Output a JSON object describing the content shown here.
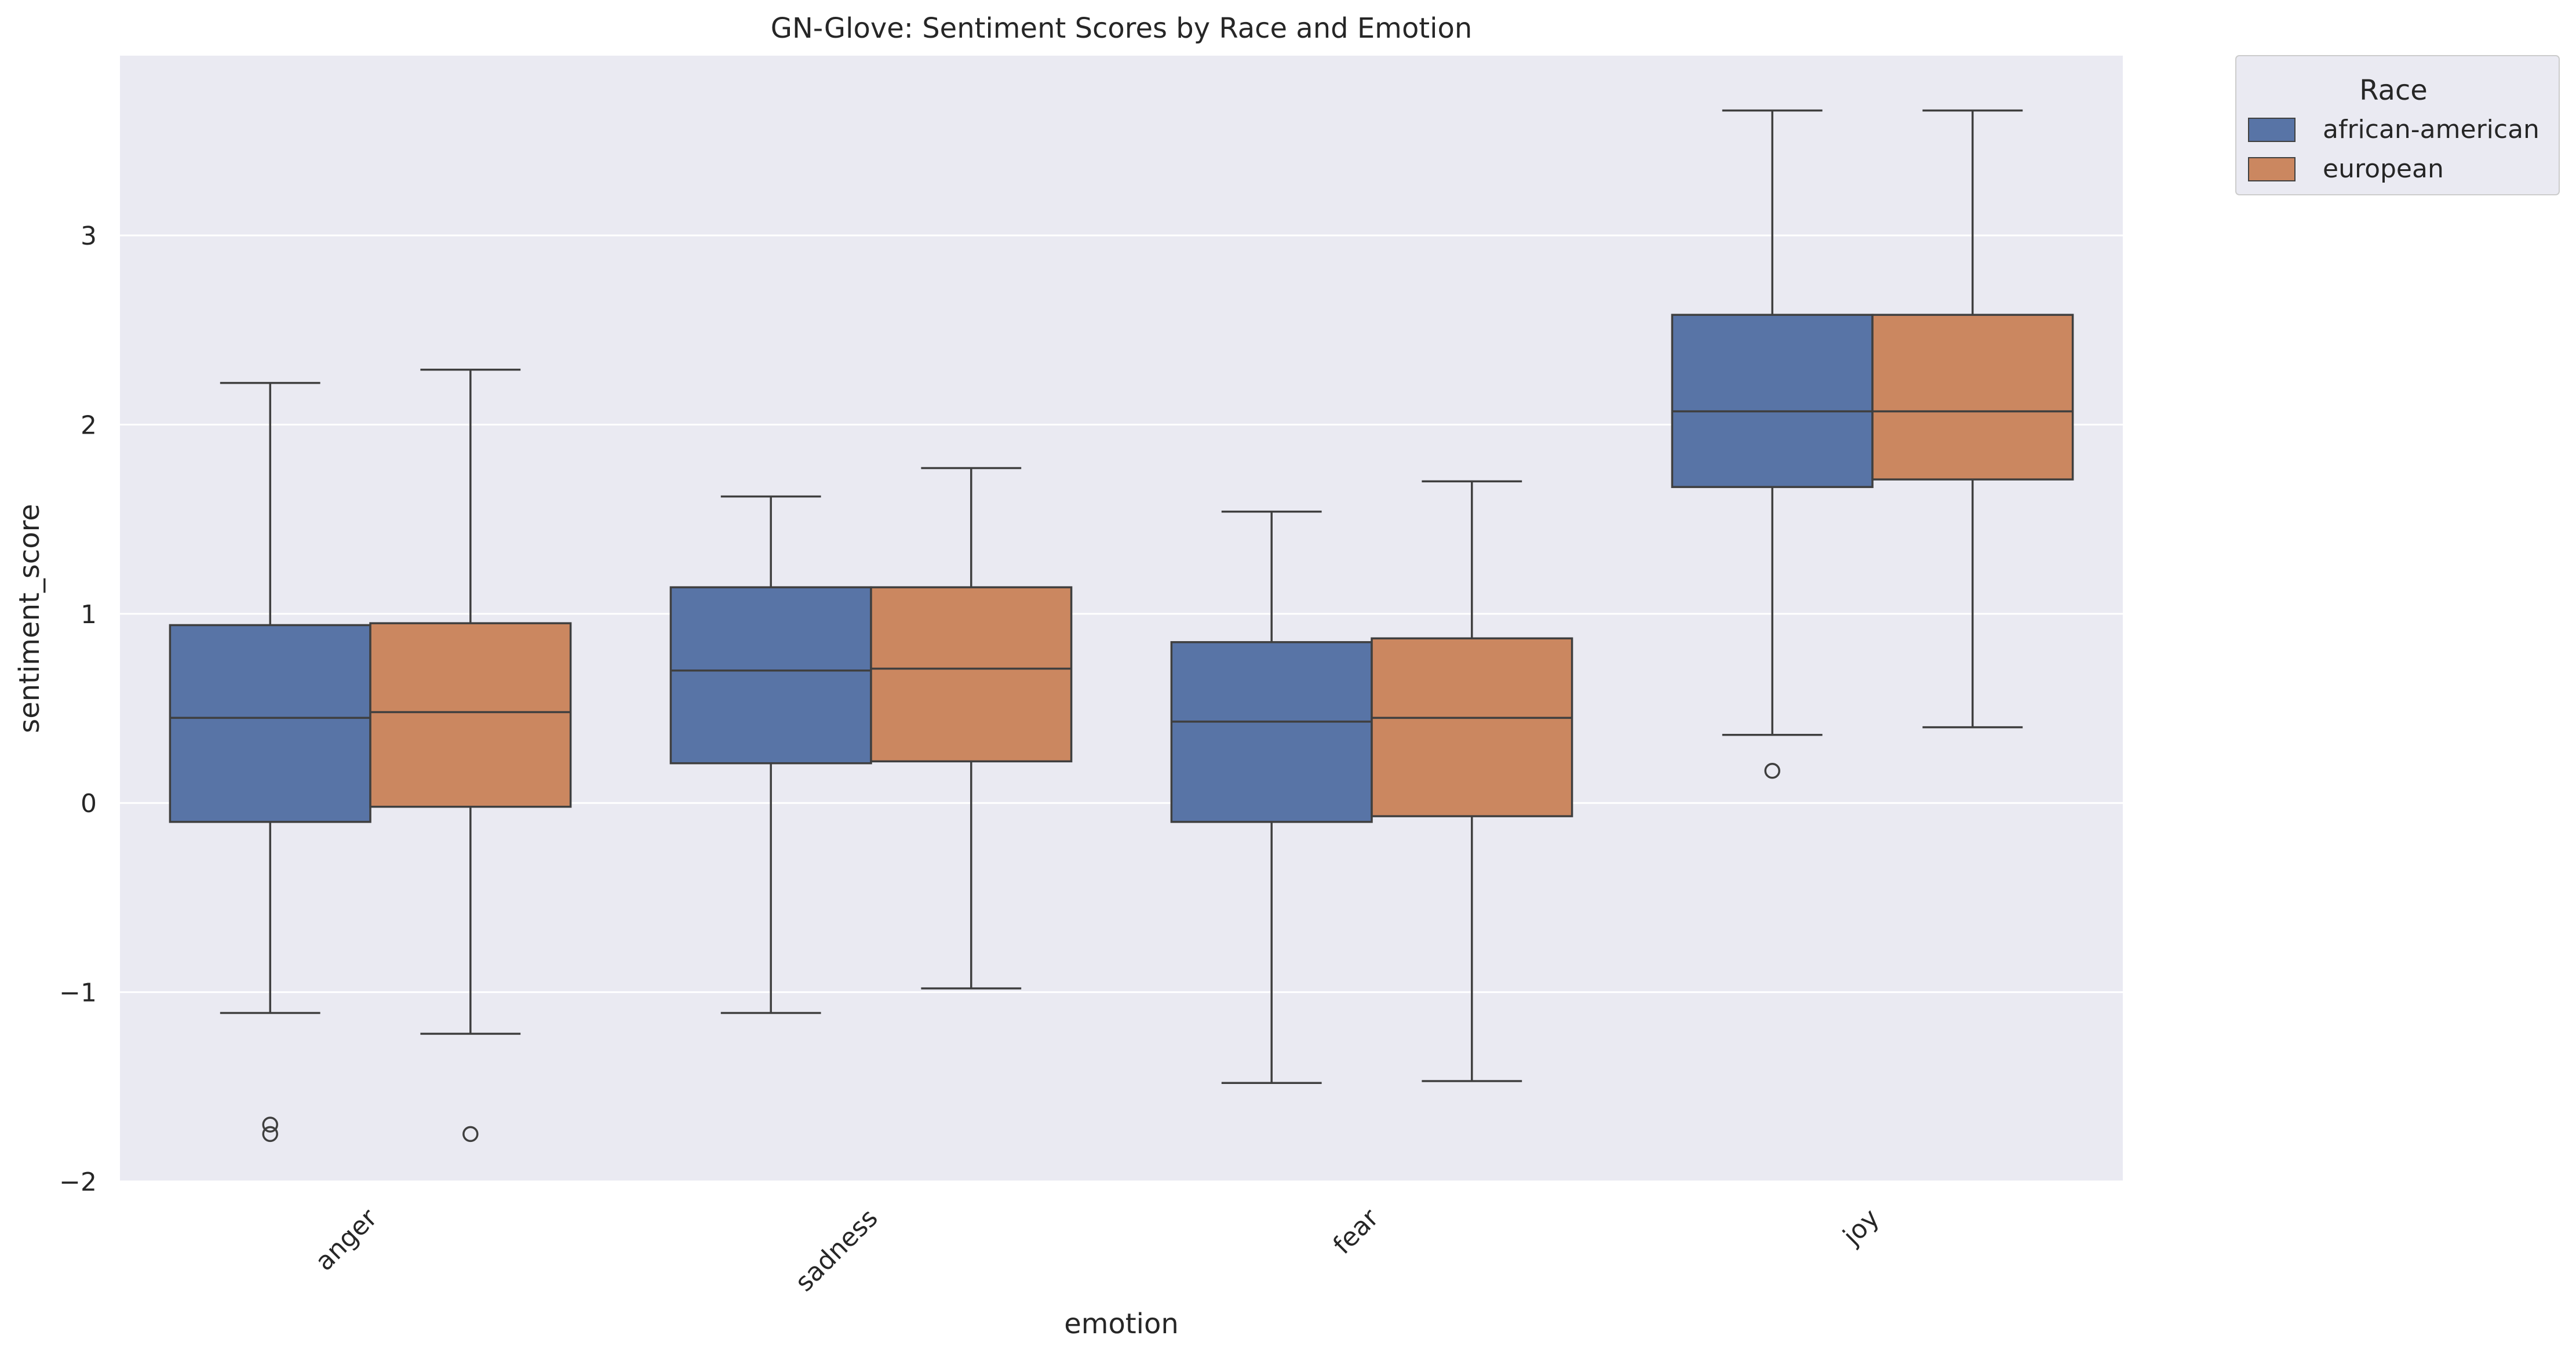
{
  "chart_data": {
    "type": "box",
    "title": "GN-Glove: Sentiment Scores by Race and Emotion",
    "xlabel": "emotion",
    "ylabel": "sentiment_score",
    "ylim": [
      -2,
      3.95
    ],
    "yticks": [
      -2,
      -1,
      0,
      1,
      2,
      3
    ],
    "ytick_labels": [
      "−2",
      "−1",
      "0",
      "1",
      "2",
      "3"
    ],
    "grid": true,
    "legend_position": "outside top-right",
    "legend_title": "Race",
    "categories": [
      "anger",
      "sadness",
      "fear",
      "joy"
    ],
    "series": [
      {
        "name": "african-american",
        "color": "#5874a6",
        "boxes": [
          {
            "whisker_low": -1.11,
            "q1": -0.1,
            "median": 0.45,
            "q3": 0.94,
            "whisker_high": 2.22,
            "outliers": [
              -1.7,
              -1.75
            ]
          },
          {
            "whisker_low": -1.11,
            "q1": 0.21,
            "median": 0.7,
            "q3": 1.14,
            "whisker_high": 1.62,
            "outliers": []
          },
          {
            "whisker_low": -1.48,
            "q1": -0.1,
            "median": 0.43,
            "q3": 0.85,
            "whisker_high": 1.54,
            "outliers": []
          },
          {
            "whisker_low": 0.36,
            "q1": 1.67,
            "median": 2.07,
            "q3": 2.58,
            "whisker_high": 3.66,
            "outliers": [
              0.17
            ]
          }
        ]
      },
      {
        "name": "european",
        "color": "#cb8760",
        "boxes": [
          {
            "whisker_low": -1.22,
            "q1": -0.02,
            "median": 0.48,
            "q3": 0.95,
            "whisker_high": 2.29,
            "outliers": [
              -1.75
            ]
          },
          {
            "whisker_low": -0.98,
            "q1": 0.22,
            "median": 0.71,
            "q3": 1.14,
            "whisker_high": 1.77,
            "outliers": []
          },
          {
            "whisker_low": -1.47,
            "q1": -0.07,
            "median": 0.45,
            "q3": 0.87,
            "whisker_high": 1.7,
            "outliers": []
          },
          {
            "whisker_low": 0.4,
            "q1": 1.71,
            "median": 2.07,
            "q3": 2.58,
            "whisker_high": 3.66,
            "outliers": []
          }
        ]
      }
    ]
  }
}
